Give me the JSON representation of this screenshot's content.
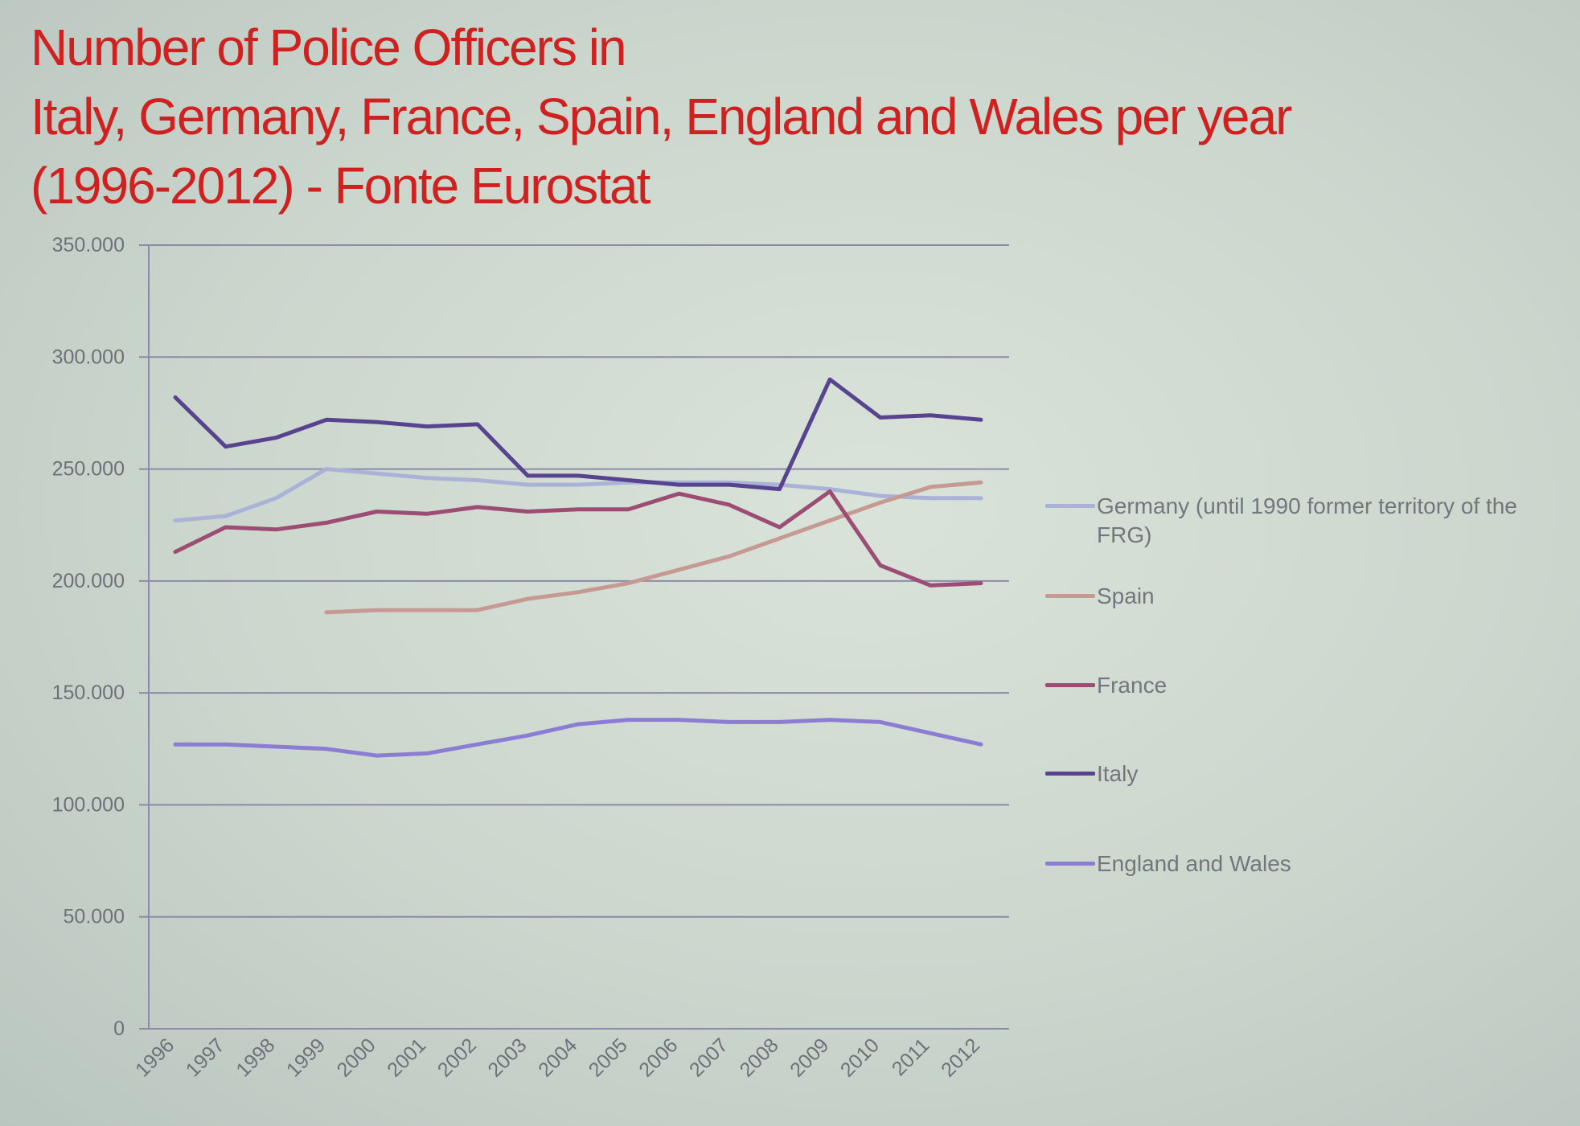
{
  "title_lines": [
    "Number of Police Officers in",
    "Italy, Germany, France, Spain, England and Wales per year",
    "(1996-2012)  - Fonte Eurostat"
  ],
  "colors": {
    "title": "#d02121",
    "gridline": "#8c8ba6",
    "tick_label": "#6e7178"
  },
  "chart_data": {
    "type": "line",
    "x": [
      "1996",
      "1997",
      "1998",
      "1999",
      "2000",
      "2001",
      "2002",
      "2003",
      "2004",
      "2005",
      "2006",
      "2007",
      "2008",
      "2009",
      "2010",
      "2011",
      "2012"
    ],
    "ylim": [
      0,
      350000
    ],
    "y_ticks": [
      0,
      50000,
      100000,
      150000,
      200000,
      250000,
      300000,
      350000
    ],
    "y_tick_labels": [
      "0",
      "50.000",
      "100.000",
      "150.000",
      "200.000",
      "250.000",
      "300.000",
      "350.000"
    ],
    "grid": true,
    "legend_position": "right",
    "series": [
      {
        "name": "Germany (until 1990 former territory of the FRG)",
        "color": "#aab2d8",
        "values": [
          227000,
          229000,
          237000,
          250000,
          248000,
          246000,
          245000,
          243000,
          243000,
          244000,
          244000,
          244000,
          243000,
          241000,
          238000,
          237000,
          237000
        ]
      },
      {
        "name": "Spain",
        "color": "#c69a92",
        "values": [
          null,
          null,
          null,
          186000,
          187000,
          187000,
          187000,
          192000,
          195000,
          199000,
          205000,
          211000,
          219000,
          227000,
          235000,
          242000,
          244000
        ]
      },
      {
        "name": "France",
        "color": "#9d4c73",
        "values": [
          213000,
          224000,
          223000,
          226000,
          231000,
          230000,
          233000,
          231000,
          232000,
          232000,
          239000,
          234000,
          224000,
          240000,
          207000,
          198000,
          199000
        ]
      },
      {
        "name": "Italy",
        "color": "#58438f",
        "values": [
          282000,
          260000,
          264000,
          272000,
          271000,
          269000,
          270000,
          247000,
          247000,
          245000,
          243000,
          243000,
          241000,
          290000,
          273000,
          274000,
          272000
        ]
      },
      {
        "name": "England and Wales",
        "color": "#8c7dd4",
        "values": [
          127000,
          127000,
          126000,
          125000,
          122000,
          123000,
          127000,
          131000,
          136000,
          138000,
          138000,
          137000,
          137000,
          138000,
          137000,
          132000,
          127000
        ]
      }
    ]
  }
}
